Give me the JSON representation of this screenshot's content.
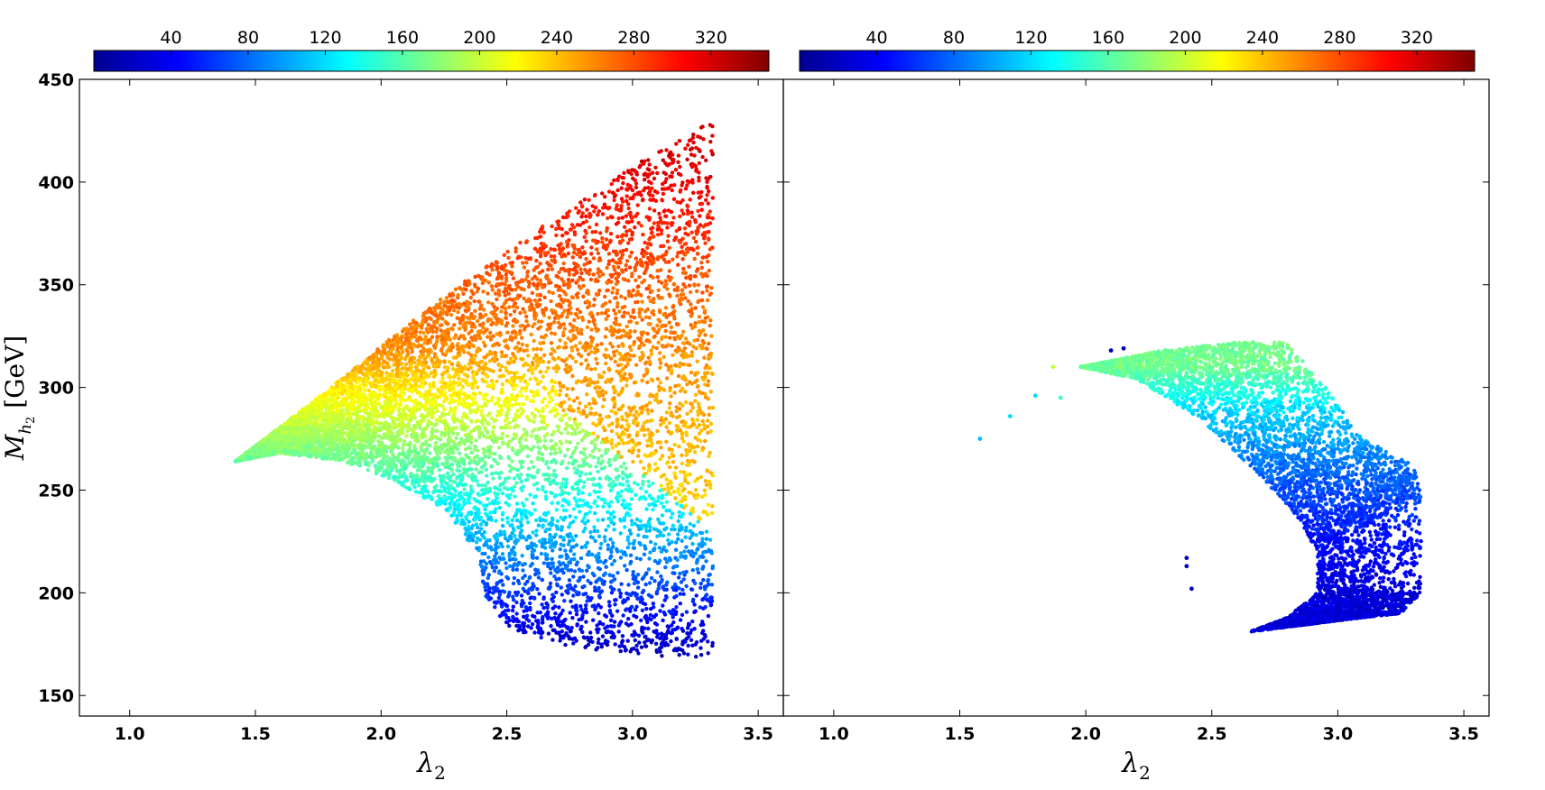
{
  "chart_data": [
    {
      "type": "scatter",
      "panel": "left",
      "xlabel": "λ2",
      "ylabel": "Mh2 [GeV]",
      "xlim": [
        0.8,
        3.6
      ],
      "ylim": [
        140,
        450
      ],
      "xticks": [
        "1.0",
        "1.5",
        "2.0",
        "2.5",
        "3.0",
        "3.5"
      ],
      "yticks": [
        "150",
        "200",
        "250",
        "300",
        "350",
        "400",
        "450"
      ],
      "colorbar": {
        "position": "top",
        "range": [
          0,
          350
        ],
        "ticks": [
          "40",
          "80",
          "120",
          "160",
          "200",
          "240",
          "280",
          "320"
        ],
        "colormap": "jet"
      },
      "regions": [
        {
          "description": "filled wedge",
          "lower_boundary": [
            [
              1.42,
              264
            ],
            [
              1.6,
              268
            ],
            [
              1.85,
              264
            ],
            [
              2.05,
              255
            ],
            [
              2.25,
              240
            ],
            [
              2.38,
              220
            ],
            [
              2.42,
              195
            ],
            [
              2.5,
              183
            ],
            [
              2.75,
              174
            ],
            [
              3.0,
              170
            ],
            [
              3.32,
              168
            ]
          ],
          "upper_boundary": [
            [
              1.42,
              264
            ],
            [
              1.8,
              300
            ],
            [
              2.2,
              340
            ],
            [
              2.6,
              375
            ],
            [
              3.0,
              408
            ],
            [
              3.32,
              430
            ]
          ],
          "right_edge_x": 3.32,
          "color_values_by_mass": [
            [
              170,
              20
            ],
            [
              200,
              60
            ],
            [
              230,
              110
            ],
            [
              260,
              160
            ],
            [
              290,
              210
            ],
            [
              320,
              260
            ],
            [
              360,
              280
            ],
            [
              410,
              320
            ]
          ]
        }
      ]
    },
    {
      "type": "scatter",
      "panel": "right",
      "xlabel": "λ2",
      "xlim": [
        0.8,
        3.6
      ],
      "ylim": [
        140,
        450
      ],
      "xticks": [
        "1.0",
        "1.5",
        "2.0",
        "2.5",
        "3.0",
        "3.5"
      ],
      "colorbar": {
        "position": "top",
        "range": [
          0,
          350
        ],
        "ticks": [
          "40",
          "80",
          "120",
          "160",
          "200",
          "240",
          "280",
          "320"
        ],
        "colormap": "jet"
      },
      "regions": [
        {
          "description": "crescent band",
          "outer_boundary": [
            [
              1.98,
              310
            ],
            [
              2.3,
              318
            ],
            [
              2.6,
              322
            ],
            [
              2.8,
              322
            ],
            [
              2.95,
              300
            ],
            [
              3.1,
              275
            ],
            [
              3.3,
              262
            ],
            [
              3.33,
              250
            ],
            [
              3.33,
              200
            ],
            [
              3.25,
              190
            ],
            [
              3.1,
              188
            ],
            [
              2.9,
              185
            ]
          ],
          "inner_boundary": [
            [
              1.98,
              310
            ],
            [
              2.2,
              304
            ],
            [
              2.45,
              285
            ],
            [
              2.65,
              262
            ],
            [
              2.82,
              240
            ],
            [
              2.92,
              220
            ],
            [
              2.92,
              200
            ],
            [
              2.8,
              188
            ],
            [
              2.65,
              181
            ]
          ],
          "color_values": [
            [
              310,
              170
            ],
            [
              290,
              120
            ],
            [
              260,
              80
            ],
            [
              230,
              50
            ],
            [
              200,
              30
            ]
          ]
        }
      ],
      "outliers": [
        [
          1.58,
          275,
          110
        ],
        [
          1.7,
          286,
          120
        ],
        [
          1.8,
          296,
          120
        ],
        [
          1.87,
          310,
          200
        ],
        [
          1.9,
          295,
          150
        ],
        [
          2.1,
          318,
          20
        ],
        [
          2.15,
          319,
          20
        ],
        [
          2.4,
          217,
          20
        ],
        [
          2.4,
          213,
          20
        ],
        [
          2.42,
          202,
          20
        ]
      ]
    }
  ]
}
